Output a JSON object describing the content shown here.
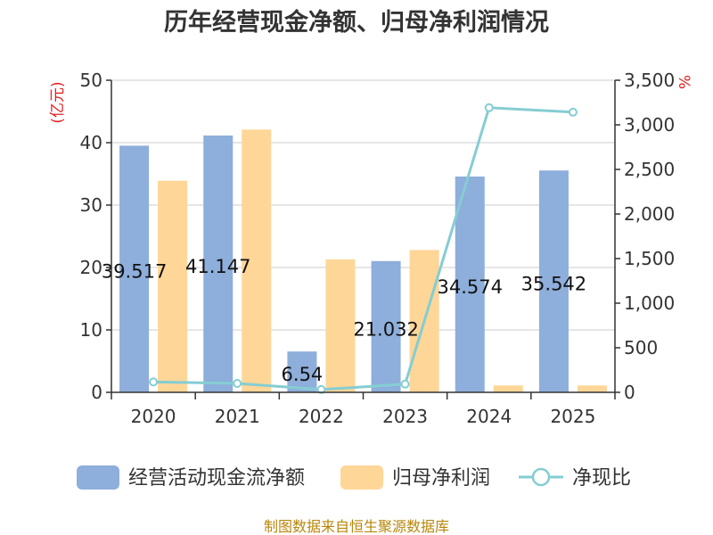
{
  "chart_data": {
    "type": "bar",
    "title": "历年经营现金净额、归母净利润情况",
    "categories": [
      "2020",
      "2021",
      "2022",
      "2023",
      "2024",
      "2025"
    ],
    "series": [
      {
        "name": "经营活动现金流净额",
        "type": "bar",
        "axis": "left",
        "color": "#8eaedb",
        "values": [
          39.517,
          41.147,
          6.54,
          21.032,
          34.574,
          35.542
        ],
        "labels": [
          "39.517",
          "41.147",
          "6.54",
          "21.032",
          "34.574",
          "35.542"
        ]
      },
      {
        "name": "归母净利润",
        "type": "bar",
        "axis": "left",
        "color": "#fed697",
        "values": [
          33.9,
          42.1,
          21.3,
          22.8,
          1.1,
          1.1
        ]
      },
      {
        "name": "净现比",
        "type": "line",
        "axis": "right",
        "color": "#85cdd3",
        "values": [
          116,
          100,
          31,
          92,
          3192,
          3142
        ]
      }
    ],
    "ylabel": "(亿元)",
    "y2label": "%",
    "ylim": [
      0,
      50
    ],
    "y2lim": [
      0,
      3500
    ],
    "yticks": [
      "0",
      "10",
      "20",
      "30",
      "40",
      "50"
    ],
    "y2ticks": [
      "0",
      "500",
      "1,000",
      "1,500",
      "2,000",
      "2,500",
      "3,000",
      "3,500"
    ],
    "grid": true,
    "legend": "bottom"
  },
  "source_note": "制图数据来自恒生聚源数据库"
}
